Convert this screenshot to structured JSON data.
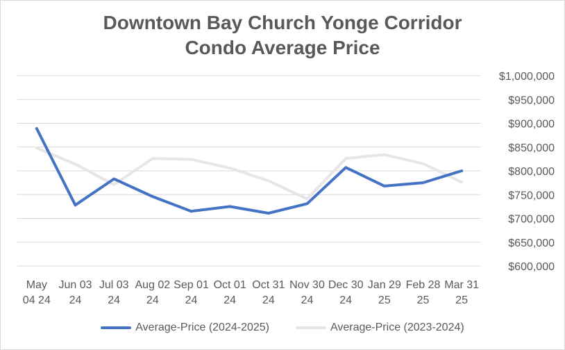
{
  "chart_data": {
    "type": "line",
    "title_lines": [
      "Downtown Bay Church Yonge Corridor",
      "Condo Average Price"
    ],
    "categories": [
      [
        "May",
        "04 24"
      ],
      [
        "Jun 03",
        "24"
      ],
      [
        "Jul 03",
        "24"
      ],
      [
        "Aug 02",
        "24"
      ],
      [
        "Sep 01",
        "24"
      ],
      [
        "Oct 01",
        "24"
      ],
      [
        "Oct 31",
        "24"
      ],
      [
        "Nov 30",
        "24"
      ],
      [
        "Dec 30",
        "24"
      ],
      [
        "Jan 29",
        "25"
      ],
      [
        "Feb 28",
        "25"
      ],
      [
        "Mar 31",
        "25"
      ]
    ],
    "series": [
      {
        "name": "Average-Price (2024-2025)",
        "color": "#4472c4",
        "values": [
          889000,
          728000,
          783000,
          746000,
          715000,
          725000,
          711000,
          731000,
          807000,
          768000,
          775000,
          800000
        ]
      },
      {
        "name": "Average-Price (2023-2024)",
        "color": "#e7e6e6",
        "values": [
          848000,
          814000,
          771000,
          826000,
          824000,
          806000,
          779000,
          741000,
          826000,
          834000,
          815000,
          776000
        ]
      }
    ],
    "y_ticks": [
      "$1,000,000",
      "$950,000",
      "$900,000",
      "$850,000",
      "$800,000",
      "$750,000",
      "$700,000",
      "$650,000",
      "$600,000"
    ],
    "ylim": [
      600000,
      1000000
    ],
    "y_axis_side": "right",
    "grid": true,
    "legend_position": "bottom"
  }
}
